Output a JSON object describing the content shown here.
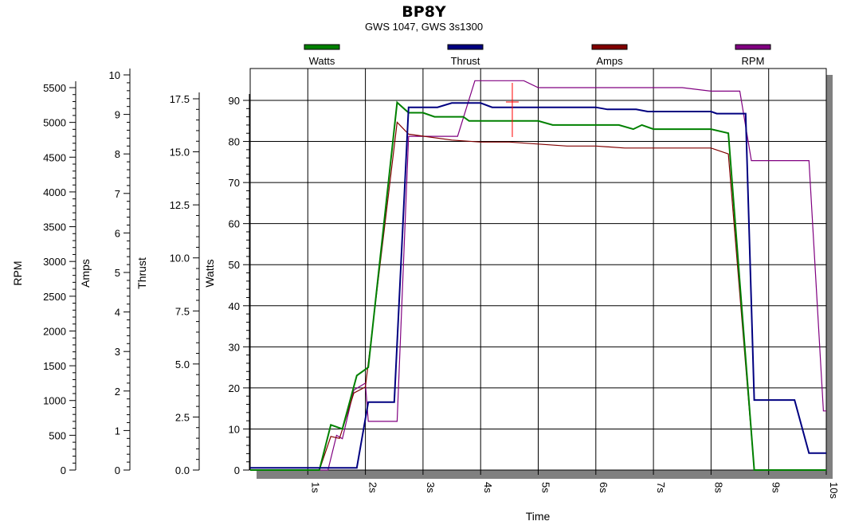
{
  "chart_data": {
    "type": "line",
    "title": "BP8Y",
    "subtitle": "GWS 1047, GWS 3s1300",
    "xlabel": "Time",
    "x_ticks": [
      "1s",
      "2s",
      "3s",
      "4s",
      "5s",
      "6s",
      "7s",
      "8s",
      "9s",
      "10s"
    ],
    "xlim": [
      0,
      10
    ],
    "legend_position": "top",
    "grid": true,
    "axes": [
      {
        "key": "watts",
        "label": "Watts",
        "min": 0,
        "max": 90,
        "ticks": [
          "0",
          "10",
          "20",
          "30",
          "40",
          "50",
          "60",
          "70",
          "80",
          "90"
        ]
      },
      {
        "key": "thrust",
        "label": "Thrust",
        "min": 0,
        "max": 17.5,
        "ticks": [
          "0.0",
          "2.5",
          "5.0",
          "7.5",
          "10.0",
          "12.5",
          "15.0",
          "17.5"
        ]
      },
      {
        "key": "amps",
        "label": "Amps",
        "min": 0,
        "max": 10,
        "ticks": [
          "0",
          "1",
          "2",
          "3",
          "4",
          "5",
          "6",
          "7",
          "8",
          "9",
          "10"
        ]
      },
      {
        "key": "rpm",
        "label": "RPM",
        "min": 0,
        "max": 5500,
        "ticks": [
          "0",
          "500",
          "1000",
          "1500",
          "2000",
          "2500",
          "3000",
          "3500",
          "4000",
          "4500",
          "5000",
          "5500"
        ]
      }
    ],
    "series": [
      {
        "name": "Watts",
        "axis": "watts",
        "color": "#008000",
        "points": [
          [
            0,
            0
          ],
          [
            1.2,
            0
          ],
          [
            1.4,
            11
          ],
          [
            1.6,
            10
          ],
          [
            1.85,
            23
          ],
          [
            2.05,
            25
          ],
          [
            2.55,
            89.5
          ],
          [
            2.75,
            87
          ],
          [
            3.0,
            87
          ],
          [
            3.2,
            86
          ],
          [
            3.7,
            86
          ],
          [
            3.8,
            85
          ],
          [
            4.6,
            85
          ],
          [
            5.0,
            85
          ],
          [
            5.25,
            84
          ],
          [
            6.0,
            84
          ],
          [
            6.4,
            84
          ],
          [
            6.65,
            83
          ],
          [
            6.8,
            84
          ],
          [
            7.0,
            83
          ],
          [
            8.0,
            83
          ],
          [
            8.3,
            82
          ],
          [
            8.75,
            0
          ],
          [
            10,
            0
          ]
        ]
      },
      {
        "name": "Thrust",
        "axis": "thrust",
        "color": "#000080",
        "points": [
          [
            0,
            0.1
          ],
          [
            1.85,
            0.1
          ],
          [
            2.05,
            3.2
          ],
          [
            2.5,
            3.2
          ],
          [
            2.75,
            17.1
          ],
          [
            3.25,
            17.1
          ],
          [
            3.5,
            17.3
          ],
          [
            4.0,
            17.3
          ],
          [
            4.2,
            17.1
          ],
          [
            6.0,
            17.1
          ],
          [
            6.2,
            17.0
          ],
          [
            6.7,
            17.0
          ],
          [
            6.9,
            16.9
          ],
          [
            8.0,
            16.9
          ],
          [
            8.1,
            16.8
          ],
          [
            8.6,
            16.8
          ],
          [
            8.75,
            3.3
          ],
          [
            9.45,
            3.3
          ],
          [
            9.7,
            0.8
          ],
          [
            10,
            0.8
          ]
        ]
      },
      {
        "name": "Amps",
        "axis": "amps",
        "color": "#800000",
        "points": [
          [
            0,
            0
          ],
          [
            1.2,
            0
          ],
          [
            1.4,
            0.85
          ],
          [
            1.55,
            0.8
          ],
          [
            1.8,
            1.95
          ],
          [
            2.0,
            2.1
          ],
          [
            2.55,
            8.8
          ],
          [
            2.75,
            8.5
          ],
          [
            3.0,
            8.45
          ],
          [
            3.5,
            8.35
          ],
          [
            4.0,
            8.3
          ],
          [
            4.5,
            8.3
          ],
          [
            5.0,
            8.25
          ],
          [
            5.5,
            8.2
          ],
          [
            6.0,
            8.2
          ],
          [
            6.5,
            8.15
          ],
          [
            7.0,
            8.15
          ],
          [
            7.5,
            8.15
          ],
          [
            8.0,
            8.15
          ],
          [
            8.3,
            8.0
          ],
          [
            8.75,
            0
          ],
          [
            10,
            0
          ]
        ]
      },
      {
        "name": "RPM",
        "axis": "rpm",
        "color": "#800080",
        "points": [
          [
            0,
            0
          ],
          [
            1.35,
            0
          ],
          [
            1.5,
            500
          ],
          [
            1.6,
            450
          ],
          [
            1.8,
            1150
          ],
          [
            2.0,
            1250
          ],
          [
            2.05,
            700
          ],
          [
            2.55,
            700
          ],
          [
            2.75,
            4800
          ],
          [
            3.6,
            4800
          ],
          [
            3.9,
            5600
          ],
          [
            4.75,
            5600
          ],
          [
            5.0,
            5500
          ],
          [
            7.5,
            5500
          ],
          [
            8.0,
            5450
          ],
          [
            8.5,
            5450
          ],
          [
            8.7,
            4450
          ],
          [
            9.7,
            4450
          ],
          [
            9.95,
            850
          ],
          [
            10,
            850
          ]
        ]
      }
    ]
  }
}
